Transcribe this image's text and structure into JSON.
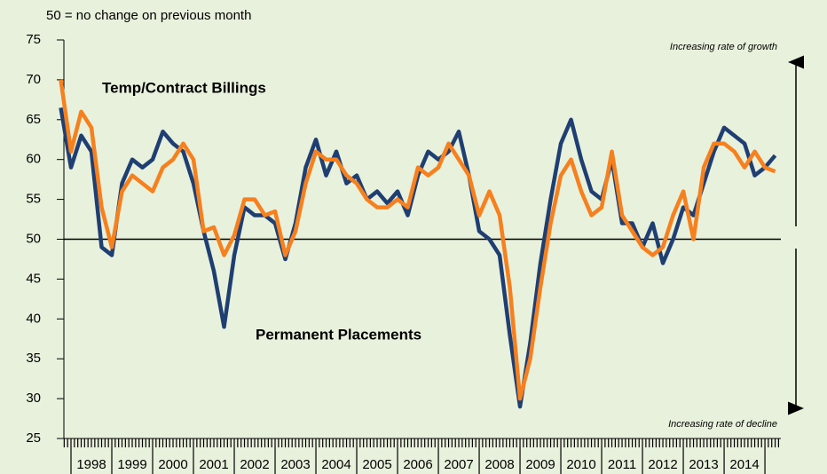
{
  "chart_data": {
    "type": "line",
    "subtitle": "50 = no change on previous month",
    "annotations": [
      "Increasing rate of growth",
      "Increasing rate of decline"
    ],
    "x": [
      1997.75,
      1998.0,
      1998.25,
      1998.5,
      1998.75,
      1999.0,
      1999.25,
      1999.5,
      1999.75,
      2000.0,
      2000.25,
      2000.5,
      2000.75,
      2001.0,
      2001.25,
      2001.5,
      2001.75,
      2002.0,
      2002.25,
      2002.5,
      2002.75,
      2003.0,
      2003.25,
      2003.5,
      2003.75,
      2004.0,
      2004.25,
      2004.5,
      2004.75,
      2005.0,
      2005.25,
      2005.5,
      2005.75,
      2006.0,
      2006.25,
      2006.5,
      2006.75,
      2007.0,
      2007.25,
      2007.5,
      2007.75,
      2008.0,
      2008.25,
      2008.5,
      2008.75,
      2009.0,
      2009.25,
      2009.5,
      2009.75,
      2010.0,
      2010.25,
      2010.5,
      2010.75,
      2011.0,
      2011.25,
      2011.5,
      2011.75,
      2012.0,
      2012.25,
      2012.5,
      2012.75,
      2013.0,
      2013.25,
      2013.5,
      2013.75,
      2014.0,
      2014.25,
      2014.5,
      2014.75,
      2015.0,
      2015.25
    ],
    "series": [
      {
        "name": "Permanent Placements",
        "color": "#1f3f73",
        "values": [
          66.5,
          59,
          63,
          61,
          49,
          48,
          57,
          60,
          59,
          60,
          63.5,
          62,
          61,
          57,
          51,
          46,
          39,
          48,
          54,
          53,
          53,
          52,
          47.5,
          52,
          59,
          62.5,
          58,
          61,
          57,
          58,
          55,
          56,
          54.5,
          56,
          53,
          58,
          61,
          60,
          61,
          63.5,
          58,
          51,
          50,
          48,
          38,
          29,
          37,
          47,
          55,
          62,
          65,
          60,
          56,
          55,
          60,
          52,
          52,
          49,
          52,
          47,
          50,
          54,
          53,
          57,
          61,
          64,
          63,
          62,
          58,
          59,
          60.5
        ]
      },
      {
        "name": "Temp/Contract Billings",
        "color": "#f7801e",
        "values": [
          70,
          61,
          66,
          64,
          54,
          49,
          56,
          58,
          57,
          56,
          59,
          60,
          62,
          60,
          51,
          51.5,
          48,
          50.5,
          55,
          55,
          53,
          53.5,
          48,
          51,
          57,
          61,
          60,
          60,
          58,
          57,
          55,
          54,
          54,
          55,
          54,
          59,
          58,
          59,
          62,
          60,
          58,
          53,
          56,
          53,
          44,
          30,
          35,
          44,
          52,
          58,
          60,
          56,
          53,
          54,
          61,
          53,
          51,
          49,
          48,
          49,
          53,
          56,
          50,
          59,
          62,
          62,
          61,
          59,
          61,
          59,
          58.5
        ]
      }
    ],
    "hline": 50,
    "xlim": [
      1997.826,
      2015.39
    ],
    "xticks": [
      1998,
      1999,
      2000,
      2001,
      2002,
      2003,
      2004,
      2005,
      2006,
      2007,
      2008,
      2009,
      2010,
      2011,
      2012,
      2013,
      2014
    ],
    "ylim": [
      25,
      75
    ],
    "yticks": [
      25,
      30,
      35,
      40,
      45,
      50,
      55,
      60,
      65,
      70,
      75
    ]
  }
}
